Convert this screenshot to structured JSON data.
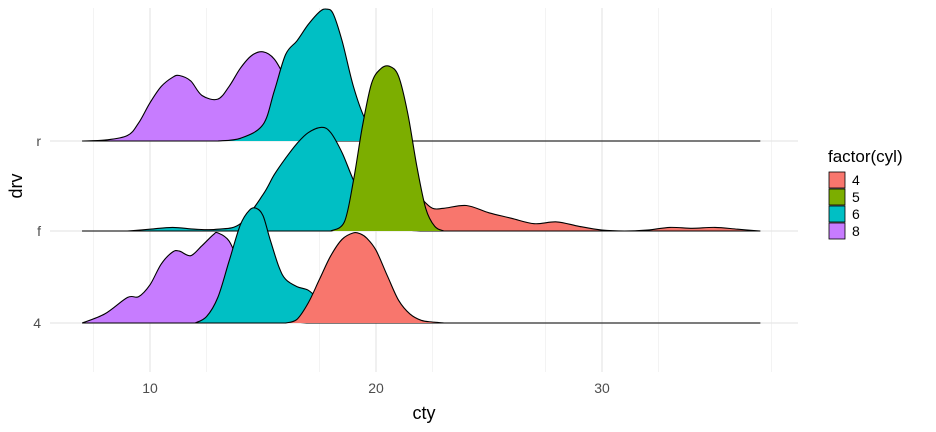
{
  "chart_data": {
    "type": "area",
    "subtype": "ridgeline",
    "title": "",
    "xlabel": "cty",
    "ylabel": "drv",
    "xlim": [
      5,
      37
    ],
    "x_ticks": [
      10,
      20,
      30
    ],
    "x_tick_labels": [
      "10",
      "20",
      "30"
    ],
    "categories": [
      "4",
      "f",
      "r"
    ],
    "grid": true,
    "legend": {
      "title": "factor(cyl)",
      "position": "right",
      "entries": [
        {
          "label": "4",
          "color": "#F8766D"
        },
        {
          "label": "5",
          "color": "#7CAE00"
        },
        {
          "label": "6",
          "color": "#00BFC4"
        },
        {
          "label": "8",
          "color": "#C77CFF"
        }
      ]
    },
    "x_range_drawn": [
      7,
      37
    ],
    "ridges": [
      {
        "drv": "4",
        "cyl": "8",
        "color": "#C77CFF",
        "peaks": [
          [
            9,
            0.3
          ],
          [
            11.2,
            0.79
          ],
          [
            13,
            0.99
          ]
        ],
        "x": [
          7,
          8,
          9,
          9.5,
          10,
          10.5,
          11,
          11.3,
          11.8,
          12.3,
          12.8,
          13,
          13.5,
          14,
          14.5,
          15,
          15.5,
          16,
          17
        ],
        "height": [
          0,
          0.1,
          0.28,
          0.29,
          0.42,
          0.65,
          0.78,
          0.79,
          0.74,
          0.85,
          0.97,
          0.99,
          0.9,
          0.62,
          0.32,
          0.14,
          0.05,
          0.02,
          0
        ]
      },
      {
        "drv": "4",
        "cyl": "6",
        "color": "#00BFC4",
        "peaks": [
          [
            14.7,
            1.26
          ],
          [
            17,
            0.36
          ]
        ],
        "x": [
          12,
          12.5,
          13,
          13.5,
          14,
          14.4,
          14.7,
          15,
          15.3,
          15.7,
          16,
          16.5,
          17,
          17.5,
          18,
          18.5,
          19,
          20
        ],
        "height": [
          0,
          0.07,
          0.28,
          0.68,
          1.08,
          1.24,
          1.26,
          1.18,
          0.93,
          0.62,
          0.48,
          0.4,
          0.36,
          0.25,
          0.12,
          0.05,
          0.01,
          0
        ]
      },
      {
        "drv": "4",
        "cyl": "4",
        "color": "#F8766D",
        "peaks": [
          [
            19.2,
            0.99
          ]
        ],
        "x": [
          16,
          16.5,
          17,
          17.5,
          18,
          18.5,
          19,
          19.3,
          19.6,
          20,
          20.5,
          21,
          21.5,
          22,
          22.5,
          23
        ],
        "height": [
          0,
          0.04,
          0.22,
          0.48,
          0.74,
          0.92,
          0.99,
          0.98,
          0.93,
          0.8,
          0.52,
          0.25,
          0.1,
          0.03,
          0.01,
          0
        ]
      },
      {
        "drv": "f",
        "cyl": "6",
        "color": "#00BFC4",
        "peaks": [
          [
            11,
            0.04
          ],
          [
            17.6,
            1.14
          ]
        ],
        "x": [
          9,
          10,
          11,
          12,
          13,
          14,
          15,
          15.5,
          16,
          16.5,
          17,
          17.6,
          18,
          18.5,
          19,
          19.5,
          20,
          20.5,
          21,
          22
        ],
        "height": [
          0,
          0.02,
          0.04,
          0.02,
          0.02,
          0.08,
          0.4,
          0.62,
          0.8,
          0.96,
          1.08,
          1.14,
          1.08,
          0.86,
          0.56,
          0.32,
          0.16,
          0.07,
          0.02,
          0
        ]
      },
      {
        "drv": "f",
        "cyl": "4",
        "color": "#F8766D",
        "peaks": [
          [
            24,
            0.28
          ],
          [
            28,
            0.1
          ],
          [
            35,
            0.04
          ]
        ],
        "x": [
          18,
          19,
          20,
          20.5,
          21,
          21.5,
          22,
          22.5,
          23,
          24,
          25,
          26,
          27,
          28,
          29,
          30,
          31,
          32,
          33,
          34,
          35,
          36,
          37
        ],
        "height": [
          0,
          0.06,
          0.3,
          0.5,
          0.6,
          0.52,
          0.36,
          0.25,
          0.25,
          0.28,
          0.2,
          0.14,
          0.08,
          0.1,
          0.05,
          0.01,
          0,
          0.01,
          0.04,
          0.03,
          0.04,
          0.02,
          0
        ]
      },
      {
        "drv": "f",
        "cyl": "5",
        "color": "#7CAE00",
        "peaks": [
          [
            20.6,
            1.81
          ]
        ],
        "x": [
          18,
          18.6,
          19,
          19.4,
          19.8,
          20.2,
          20.6,
          21,
          21.4,
          21.8,
          22.2,
          22.6,
          23
        ],
        "height": [
          0,
          0.1,
          0.55,
          1.15,
          1.62,
          1.78,
          1.81,
          1.7,
          1.3,
          0.72,
          0.25,
          0.05,
          0
        ]
      },
      {
        "drv": "r",
        "cyl": "8",
        "color": "#C77CFF",
        "peaks": [
          [
            11.3,
            0.72
          ],
          [
            15,
            0.98
          ]
        ],
        "x": [
          7,
          8,
          9,
          9.5,
          10,
          10.5,
          11,
          11.3,
          11.8,
          12.3,
          13,
          13.5,
          14,
          14.5,
          15,
          15.5,
          16,
          16.5,
          17,
          17.5,
          18
        ],
        "height": [
          0,
          0.01,
          0.06,
          0.2,
          0.42,
          0.6,
          0.7,
          0.72,
          0.66,
          0.5,
          0.46,
          0.6,
          0.8,
          0.94,
          0.98,
          0.9,
          0.68,
          0.4,
          0.15,
          0.04,
          0
        ]
      },
      {
        "drv": "r",
        "cyl": "6",
        "color": "#00BFC4",
        "peaks": [
          [
            17.8,
            1.45
          ]
        ],
        "x": [
          13,
          14,
          15,
          15.5,
          16,
          16.5,
          17,
          17.5,
          17.8,
          18.1,
          18.5,
          19,
          19.5,
          20,
          20.5,
          21
        ],
        "height": [
          0,
          0.03,
          0.18,
          0.55,
          0.95,
          1.1,
          1.28,
          1.42,
          1.45,
          1.4,
          1.1,
          0.6,
          0.25,
          0.08,
          0.02,
          0
        ]
      }
    ]
  }
}
